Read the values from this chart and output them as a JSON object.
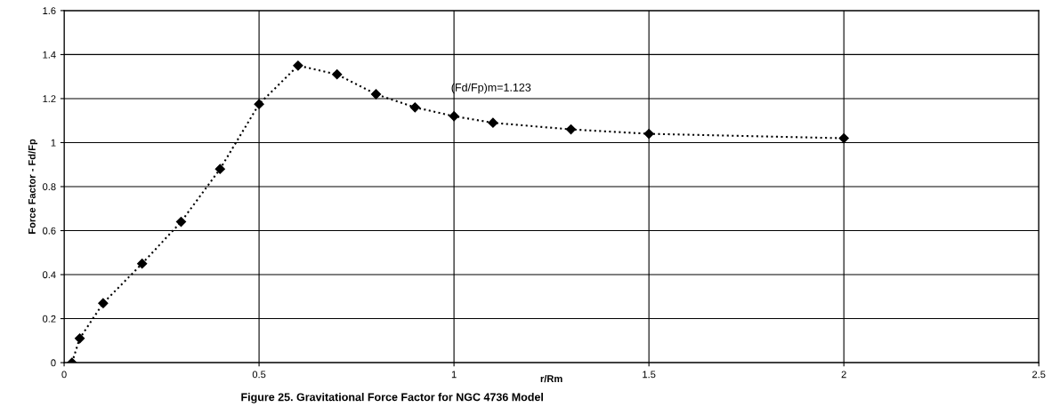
{
  "chart_data": {
    "type": "line",
    "xlabel": "r/Rm",
    "ylabel": "Force Factor - Fd/Fp",
    "x": [
      0.02,
      0.04,
      0.1,
      0.2,
      0.3,
      0.4,
      0.5,
      0.6,
      0.7,
      0.8,
      0.9,
      1.0,
      1.1,
      1.3,
      1.5,
      2.0
    ],
    "series": [
      {
        "color": "#000000",
        "values": [
          0.0,
          0.11,
          0.27,
          0.45,
          0.64,
          0.88,
          1.175,
          1.35,
          1.31,
          1.22,
          1.16,
          1.12,
          1.09,
          1.06,
          1.04,
          1.02
        ]
      }
    ],
    "marker": "diamond",
    "line_style": "dotted",
    "xlim": [
      0,
      2.5
    ],
    "xticks": [
      0,
      0.5,
      1,
      1.5,
      2,
      2.5
    ],
    "ylim": [
      0,
      1.6
    ],
    "yticks": [
      0,
      0.2,
      0.4,
      0.6,
      0.8,
      1,
      1.2,
      1.4,
      1.6
    ],
    "grid": true,
    "annotations": [
      {
        "text": "(Fd/Fp)m=1.123",
        "x": 1.0,
        "y": 1.123
      },
      "Figure 25. Gravitational Force Factor for NGC 4736 Model"
    ]
  }
}
